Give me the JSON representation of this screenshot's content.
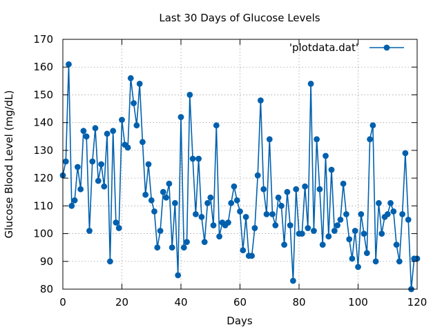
{
  "chart_data": {
    "type": "line",
    "title": "Last 30 Days of Glucose Levels",
    "xlabel": "Days",
    "ylabel": "Glucose Blood Level (mg/dL)",
    "xlim": [
      0,
      120
    ],
    "ylim": [
      80,
      170
    ],
    "xticks": [
      0,
      20,
      40,
      60,
      80,
      100,
      120
    ],
    "yticks": [
      80,
      90,
      100,
      110,
      120,
      130,
      140,
      150,
      160,
      170
    ],
    "grid": true,
    "legend_placement": "top-right",
    "series": [
      {
        "name": "'plotdata.dat'",
        "color": "#0060ad",
        "marker": "circle",
        "x": [
          0,
          1,
          2,
          3,
          4,
          5,
          6,
          7,
          8,
          9,
          10,
          11,
          12,
          13,
          14,
          15,
          16,
          17,
          18,
          19,
          20,
          21,
          22,
          23,
          24,
          25,
          26,
          27,
          28,
          29,
          30,
          31,
          32,
          33,
          34,
          35,
          36,
          37,
          38,
          39,
          40,
          41,
          42,
          43,
          44,
          45,
          46,
          47,
          48,
          49,
          50,
          51,
          52,
          53,
          54,
          55,
          56,
          57,
          58,
          59,
          60,
          61,
          62,
          63,
          64,
          65,
          66,
          67,
          68,
          69,
          70,
          71,
          72,
          73,
          74,
          75,
          76,
          77,
          78,
          79,
          80,
          81,
          82,
          83,
          84,
          85,
          86,
          87,
          88,
          89,
          90,
          91,
          92,
          93,
          94,
          95,
          96,
          97,
          98,
          99,
          100,
          101,
          102,
          103,
          104,
          105,
          106,
          107,
          108,
          109,
          110,
          111,
          112,
          113,
          114,
          115,
          116,
          117,
          118,
          119,
          120
        ],
        "y": [
          121,
          126,
          161,
          110,
          112,
          124,
          116,
          137,
          135,
          101,
          126,
          138,
          119,
          125,
          117,
          136,
          90,
          137,
          104,
          102,
          141,
          132,
          131,
          156,
          147,
          139,
          154,
          133,
          114,
          125,
          112,
          108,
          95,
          101,
          115,
          113,
          118,
          95,
          111,
          85,
          142,
          95,
          97,
          150,
          127,
          107,
          127,
          106,
          97,
          111,
          113,
          103,
          139,
          99,
          104,
          103,
          104,
          111,
          117,
          112,
          108,
          94,
          106,
          92,
          92,
          102,
          121,
          148,
          116,
          107,
          134,
          107,
          103,
          113,
          110,
          96,
          115,
          103,
          83,
          116,
          100,
          100,
          117,
          102,
          154,
          101,
          134,
          116,
          96,
          128,
          99,
          123,
          101,
          103,
          105,
          118,
          107,
          98,
          91,
          101,
          88,
          107,
          100,
          93,
          134,
          139,
          90,
          111,
          100,
          106,
          107,
          111,
          108,
          96,
          90,
          107,
          129,
          105,
          80,
          91,
          91
        ]
      }
    ]
  }
}
